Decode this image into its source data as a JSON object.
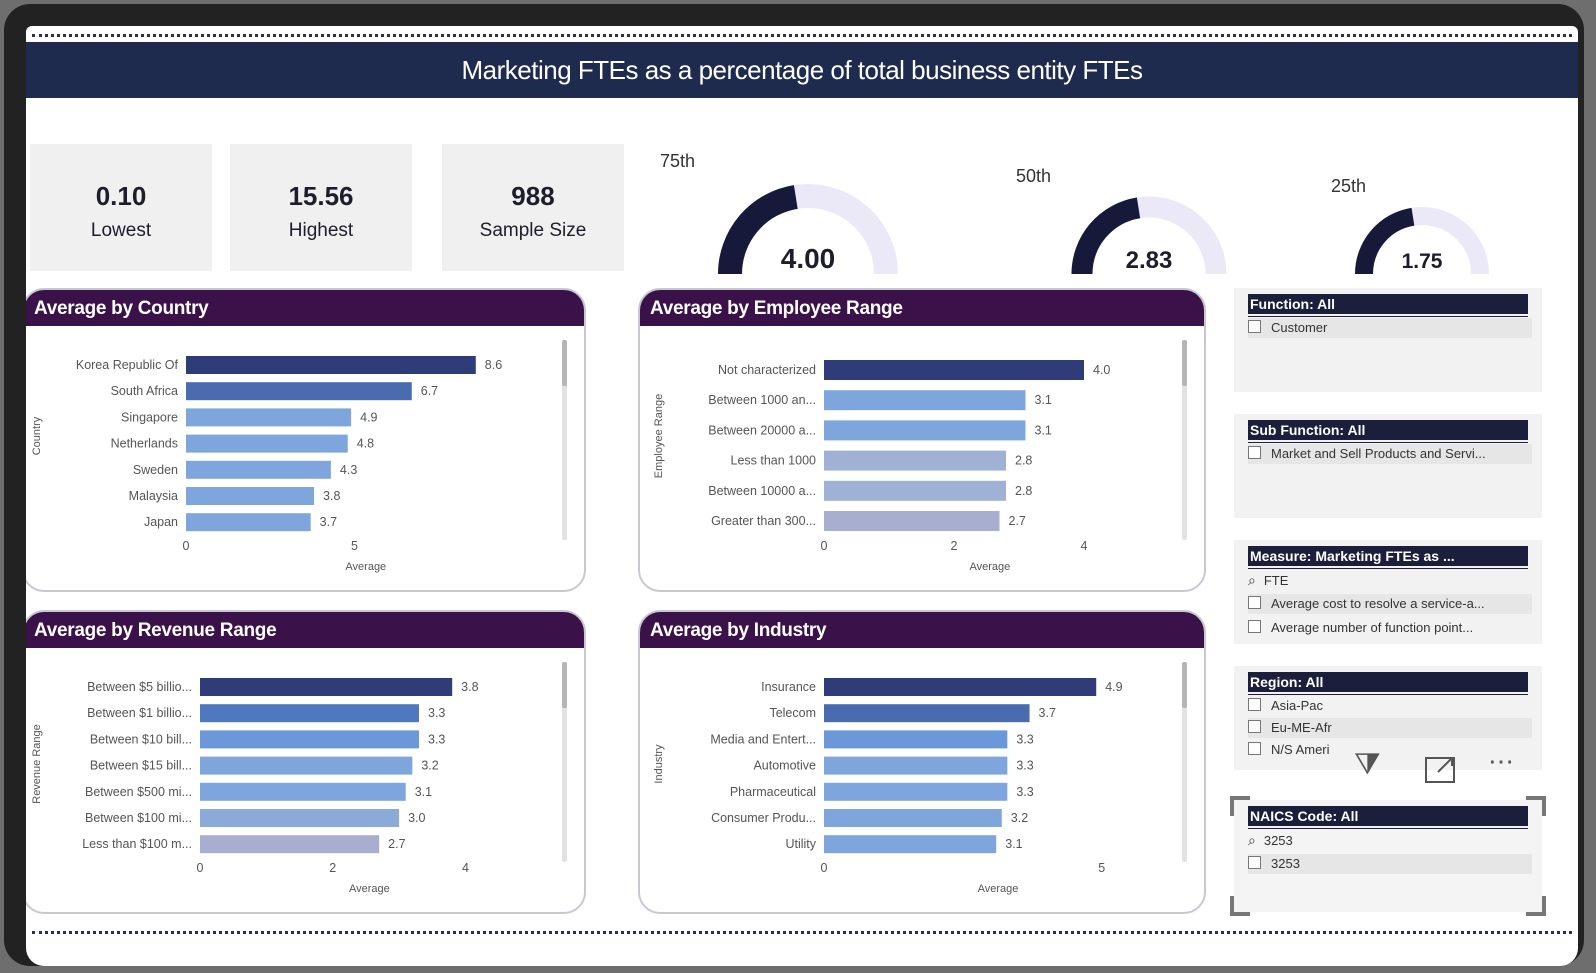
{
  "title": "Marketing FTEs as a percentage of total business entity FTEs",
  "kpis": [
    {
      "value": "0.10",
      "label": "Lowest"
    },
    {
      "value": "15.56",
      "label": "Highest"
    },
    {
      "value": "988",
      "label": "Sample Size"
    }
  ],
  "gauges": [
    {
      "label": "75th",
      "value": "4.00",
      "fill": 0.45
    },
    {
      "label": "50th",
      "value": "2.83",
      "fill": 0.45
    },
    {
      "label": "25th",
      "value": "1.75",
      "fill": 0.45
    }
  ],
  "chart_data": [
    {
      "type": "bar",
      "title": "Average by Country",
      "ylabel": "Country",
      "xlabel": "Average",
      "xlim": [
        0,
        9.2
      ],
      "ticks": [
        0,
        5
      ],
      "categories": [
        "Korea Republic Of",
        "South Africa",
        "Singapore",
        "Netherlands",
        "Sweden",
        "Malaysia",
        "Japan"
      ],
      "values": [
        8.6,
        6.7,
        4.9,
        4.8,
        4.3,
        3.8,
        3.7
      ],
      "value_labels": [
        "8.6",
        "6.7",
        "4.9",
        "4.8",
        "4.3",
        "3.8",
        "3.7"
      ],
      "colors": [
        "#2e3d78",
        "#4a6bb0",
        "#7fa6dc",
        "#7fa6dc",
        "#7fa6dc",
        "#7fa6dc",
        "#7fa6dc"
      ]
    },
    {
      "type": "bar",
      "title": "Average by Employee Range",
      "ylabel": "Employee Range",
      "xlabel": "Average",
      "xlim": [
        0,
        4.4
      ],
      "ticks": [
        0,
        2,
        4
      ],
      "categories": [
        "Not characterized",
        "Between 1000 an...",
        "Between 20000 a...",
        "Less than 1000",
        "Between 10000 a...",
        "Greater than 300..."
      ],
      "values": [
        4.0,
        3.1,
        3.1,
        2.8,
        2.8,
        2.7
      ],
      "value_labels": [
        "4.0",
        "3.1",
        "3.1",
        "2.8",
        "2.8",
        "2.7"
      ],
      "colors": [
        "#2e3d78",
        "#7fa6dc",
        "#7fa6dc",
        "#9fb2d6",
        "#9fb2d6",
        "#a8aed0"
      ]
    },
    {
      "type": "bar",
      "title": "Average by Revenue Range",
      "ylabel": "Revenue Range",
      "xlabel": "Average",
      "xlim": [
        0,
        4.4
      ],
      "ticks": [
        0,
        2,
        4
      ],
      "categories": [
        "Between $5 billio...",
        "Between $1 billio...",
        "Between $10 bill...",
        "Between $15 bill...",
        "Between $500 mi...",
        "Between $100 mi...",
        "Less than $100 m..."
      ],
      "values": [
        3.8,
        3.3,
        3.3,
        3.2,
        3.1,
        3.0,
        2.7
      ],
      "value_labels": [
        "3.8",
        "3.3",
        "3.3",
        "3.2",
        "3.1",
        "3.0",
        "2.7"
      ],
      "colors": [
        "#2e3d78",
        "#4f78c0",
        "#6a98d8",
        "#7fa6dc",
        "#7fa6dc",
        "#8aaad8",
        "#a8aed0"
      ]
    },
    {
      "type": "bar",
      "title": "Average by Industry",
      "ylabel": "Industry",
      "xlabel": "Average",
      "xlim": [
        0,
        5.4
      ],
      "ticks": [
        0,
        5
      ],
      "categories": [
        "Insurance",
        "Telecom",
        "Media and Entert...",
        "Automotive",
        "Pharmaceutical",
        "Consumer Produ...",
        "Utility"
      ],
      "values": [
        4.9,
        3.7,
        3.3,
        3.3,
        3.3,
        3.2,
        3.1
      ],
      "value_labels": [
        "4.9",
        "3.7",
        "3.3",
        "3.3",
        "3.3",
        "3.2",
        "3.1"
      ],
      "colors": [
        "#2e3d78",
        "#4a6bb0",
        "#6a98d8",
        "#7fa6dc",
        "#7fa6dc",
        "#7fa6dc",
        "#7fa6dc"
      ]
    }
  ],
  "slicers": [
    {
      "header": "Function: All",
      "items": [
        {
          "text": "Customer",
          "icon": "checkbox-icon"
        }
      ]
    },
    {
      "header": "Sub Function: All",
      "items": [
        {
          "text": "Market and Sell Products and Servi...",
          "icon": "checkbox-icon"
        }
      ]
    },
    {
      "header": "Measure: Marketing FTEs as ...",
      "items": [
        {
          "text": "FTE",
          "icon": "search-icon"
        },
        {
          "text": "Average cost to resolve a service-a...",
          "icon": "checkbox-icon"
        },
        {
          "text": "Average number of function point...",
          "icon": "checkbox-icon"
        }
      ]
    },
    {
      "header": "Region: All",
      "items": [
        {
          "text": "Asia-Pac",
          "icon": "checkbox-icon"
        },
        {
          "text": "Eu-ME-Afr",
          "icon": "checkbox-icon"
        },
        {
          "text": "N/S Ameri",
          "icon": "checkbox-icon"
        }
      ]
    },
    {
      "header": "NAICS Code: All",
      "items": [
        {
          "text": "3253",
          "icon": "search-icon"
        },
        {
          "text": "3253",
          "icon": "checkbox-icon"
        }
      ]
    }
  ],
  "overlay_icons": [
    "filter-icon",
    "focus-mode-icon",
    "more-options-icon"
  ],
  "colors": {
    "title_bar": "#1f2a4f",
    "card_header": "#3a1148",
    "gauge_fill": "#16193a",
    "gauge_track": "#ebe9f7"
  }
}
